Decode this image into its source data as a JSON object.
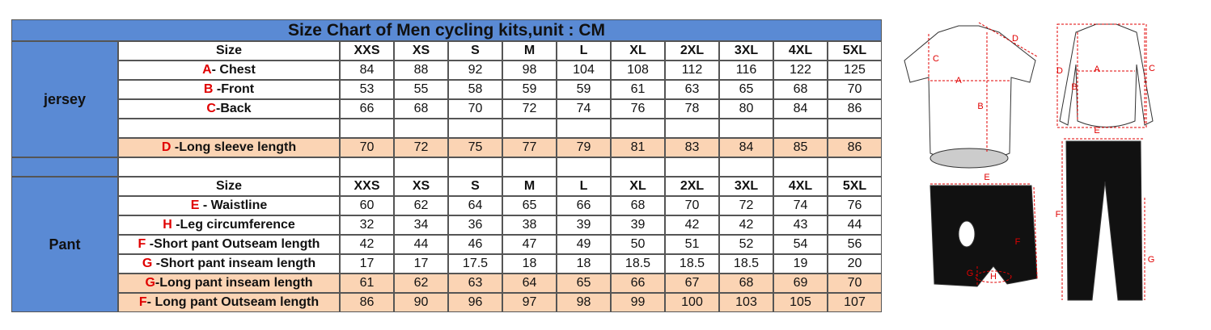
{
  "title": "Size Chart of Men cycling kits,unit : CM",
  "jersey": {
    "label": "jersey",
    "size_header": "Size",
    "sizes": [
      "XXS",
      "XS",
      "S",
      "M",
      "L",
      "XL",
      "2XL",
      "3XL",
      "4XL",
      "5XL"
    ],
    "rows": [
      {
        "key": "A",
        "text": "- Chest",
        "values": [
          "84",
          "88",
          "92",
          "98",
          "104",
          "108",
          "112",
          "116",
          "122",
          "125"
        ]
      },
      {
        "key": "B",
        "text": " -Front",
        "values": [
          "53",
          "55",
          "58",
          "59",
          "59",
          "61",
          "63",
          "65",
          "68",
          "70"
        ]
      },
      {
        "key": "C",
        "text": "-Back",
        "values": [
          "66",
          "68",
          "70",
          "72",
          "74",
          "76",
          "78",
          "80",
          "84",
          "86"
        ]
      },
      {
        "key": "D",
        "text": " -Long sleeve length",
        "highlight": true,
        "values": [
          "70",
          "72",
          "75",
          "77",
          "79",
          "81",
          "83",
          "84",
          "85",
          "86"
        ]
      }
    ]
  },
  "pant": {
    "label": "Pant",
    "size_header": "Size",
    "sizes": [
      "XXS",
      "XS",
      "S",
      "M",
      "L",
      "XL",
      "2XL",
      "3XL",
      "4XL",
      "5XL"
    ],
    "rows": [
      {
        "key": "E",
        "text": " - Waistline",
        "values": [
          "60",
          "62",
          "64",
          "65",
          "66",
          "68",
          "70",
          "72",
          "74",
          "76"
        ]
      },
      {
        "key": "H",
        "text": " -Leg circumference",
        "values": [
          "32",
          "34",
          "36",
          "38",
          "39",
          "39",
          "42",
          "42",
          "43",
          "44"
        ]
      },
      {
        "key": "F",
        "text": " -Short pant Outseam length",
        "values": [
          "42",
          "44",
          "46",
          "47",
          "49",
          "50",
          "51",
          "52",
          "54",
          "56"
        ]
      },
      {
        "key": "G",
        "text": " -Short pant inseam length",
        "values": [
          "17",
          "17",
          "17.5",
          "18",
          "18",
          "18.5",
          "18.5",
          "18.5",
          "19",
          "20"
        ]
      },
      {
        "key": "G",
        "text": "-Long pant inseam length",
        "highlight": true,
        "values": [
          "61",
          "62",
          "63",
          "64",
          "65",
          "66",
          "67",
          "68",
          "69",
          "70"
        ]
      },
      {
        "key": "F",
        "text": "- Long pant Outseam length",
        "highlight": true,
        "values": [
          "86",
          "90",
          "96",
          "97",
          "98",
          "99",
          "100",
          "103",
          "105",
          "107"
        ]
      }
    ]
  },
  "diagram_labels": {
    "short_jersey": [
      "C",
      "D",
      "A",
      "B"
    ],
    "long_jersey": [
      "D",
      "B",
      "A",
      "C"
    ],
    "shorts": [
      "E",
      "F",
      "G",
      "H"
    ],
    "long_pants": [
      "E",
      "F",
      "G"
    ]
  }
}
